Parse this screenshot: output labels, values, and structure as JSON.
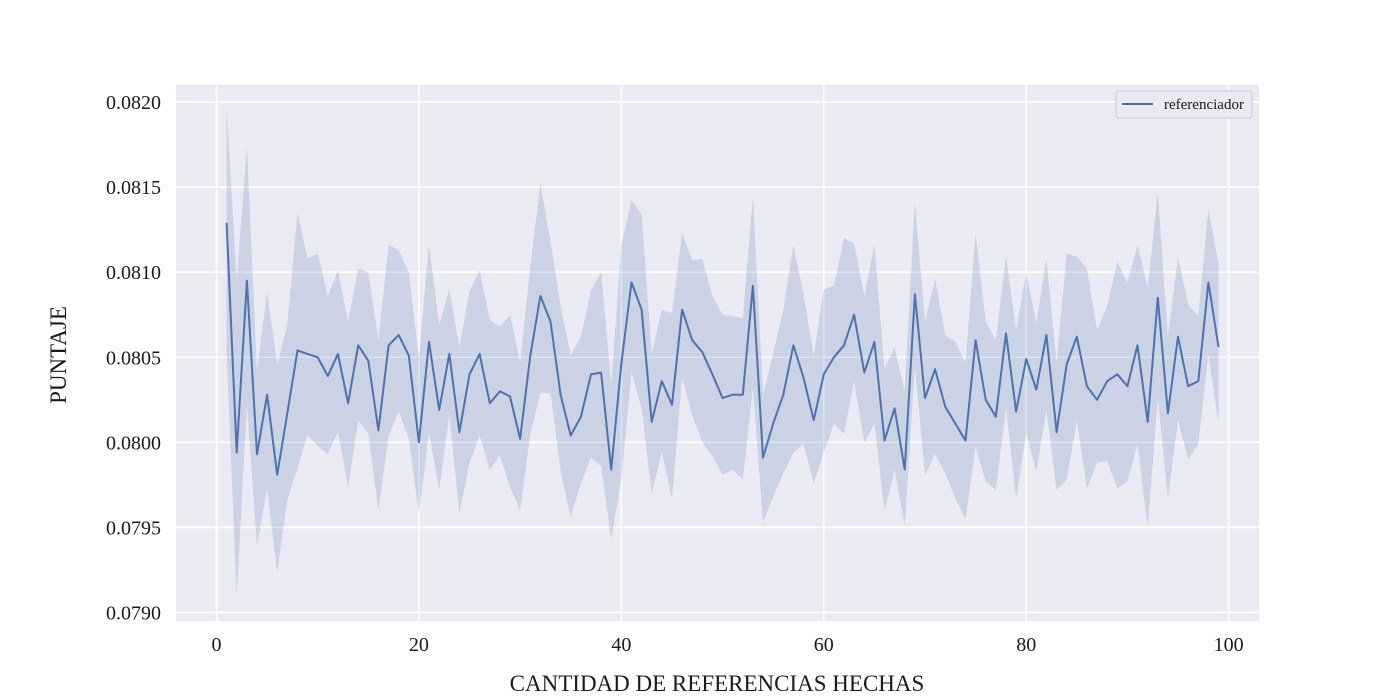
{
  "chart_data": {
    "type": "line",
    "title": "",
    "xlabel": "CANTIDAD DE REFERENCIAS HECHAS",
    "ylabel": "PUNTAJE",
    "xlim": [
      -4,
      103
    ],
    "ylim": [
      0.07895,
      0.0821
    ],
    "xticks": [
      0,
      20,
      40,
      60,
      80,
      100
    ],
    "xtick_labels": [
      "0",
      "20",
      "40",
      "60",
      "80",
      "100"
    ],
    "yticks": [
      0.079,
      0.0795,
      0.08,
      0.0805,
      0.081,
      0.0815,
      0.082
    ],
    "ytick_labels": [
      "0.0790",
      "0.0795",
      "0.0800",
      "0.0805",
      "0.0810",
      "0.0815",
      "0.0820"
    ],
    "grid": true,
    "legend_position": "top-right",
    "line_color": "#4c72b0",
    "band_color": "#4c72b0",
    "background_color": "#eaeaf2",
    "x": [
      1,
      2,
      3,
      4,
      5,
      6,
      7,
      8,
      9,
      10,
      11,
      12,
      13,
      14,
      15,
      16,
      17,
      18,
      19,
      20,
      21,
      22,
      23,
      24,
      25,
      26,
      27,
      28,
      29,
      30,
      31,
      32,
      33,
      34,
      35,
      36,
      37,
      38,
      39,
      40,
      41,
      42,
      43,
      44,
      45,
      46,
      47,
      48,
      49,
      50,
      51,
      52,
      53,
      54,
      55,
      56,
      57,
      58,
      59,
      60,
      61,
      62,
      63,
      64,
      65,
      66,
      67,
      68,
      69,
      70,
      71,
      72,
      73,
      74,
      75,
      76,
      77,
      78,
      79,
      80,
      81,
      82,
      83,
      84,
      85,
      86,
      87,
      88,
      89,
      90,
      91,
      92,
      93,
      94,
      95,
      96,
      97,
      98,
      99
    ],
    "series": [
      {
        "name": "referenciador",
        "values": [
          0.08129,
          0.07994,
          0.08095,
          0.07993,
          0.08028,
          0.07981,
          0.08017,
          0.08054,
          0.08052,
          0.0805,
          0.08039,
          0.08052,
          0.08023,
          0.08057,
          0.08048,
          0.08007,
          0.08057,
          0.08063,
          0.08051,
          0.08,
          0.08059,
          0.08019,
          0.08052,
          0.08006,
          0.0804,
          0.08052,
          0.08023,
          0.0803,
          0.08027,
          0.08002,
          0.08051,
          0.08086,
          0.08071,
          0.08028,
          0.08004,
          0.08015,
          0.0804,
          0.08041,
          0.07984,
          0.08046,
          0.08094,
          0.08078,
          0.08012,
          0.08036,
          0.08022,
          0.08078,
          0.0806,
          0.08053,
          0.0804,
          0.08026,
          0.08028,
          0.08028,
          0.08092,
          0.07991,
          0.08011,
          0.08028,
          0.08057,
          0.08038,
          0.08013,
          0.0804,
          0.0805,
          0.08057,
          0.08075,
          0.08041,
          0.08059,
          0.08001,
          0.0802,
          0.07984,
          0.08087,
          0.08026,
          0.08043,
          0.08021,
          0.08011,
          0.08001,
          0.0806,
          0.08025,
          0.08015,
          0.08064,
          0.08018,
          0.08049,
          0.08031,
          0.08063,
          0.08006,
          0.08046,
          0.08062,
          0.08033,
          0.08025,
          0.08036,
          0.0804,
          0.08033,
          0.08057,
          0.08012,
          0.08085,
          0.08017,
          0.08062,
          0.08033,
          0.08036,
          0.08094,
          0.08056
        ],
        "ci_upper": [
          0.08197,
          0.08095,
          0.08174,
          0.08042,
          0.08088,
          0.08046,
          0.08069,
          0.08135,
          0.08108,
          0.08111,
          0.08086,
          0.08101,
          0.08071,
          0.08102,
          0.081,
          0.0806,
          0.08116,
          0.08113,
          0.081,
          0.0805,
          0.08116,
          0.08069,
          0.0809,
          0.08056,
          0.08089,
          0.08101,
          0.08072,
          0.08068,
          0.08075,
          0.08047,
          0.08103,
          0.08152,
          0.08118,
          0.0808,
          0.08051,
          0.08062,
          0.08089,
          0.081,
          0.08034,
          0.08116,
          0.08142,
          0.08134,
          0.08052,
          0.08078,
          0.08076,
          0.08123,
          0.08107,
          0.08108,
          0.08086,
          0.08075,
          0.08074,
          0.08073,
          0.08144,
          0.08028,
          0.08052,
          0.08078,
          0.08116,
          0.08087,
          0.08051,
          0.0809,
          0.08092,
          0.0812,
          0.08117,
          0.08086,
          0.08116,
          0.08043,
          0.08056,
          0.0803,
          0.08141,
          0.08071,
          0.08096,
          0.08063,
          0.08059,
          0.08047,
          0.08123,
          0.08071,
          0.0806,
          0.08109,
          0.08066,
          0.081,
          0.0807,
          0.08108,
          0.08047,
          0.08111,
          0.08109,
          0.08102,
          0.08066,
          0.0808,
          0.08106,
          0.08094,
          0.08116,
          0.08091,
          0.08147,
          0.08062,
          0.08109,
          0.08081,
          0.08074,
          0.08137,
          0.08105
        ],
        "ci_lower": [
          0.08053,
          0.0791,
          0.08022,
          0.07939,
          0.07973,
          0.07924,
          0.07966,
          0.07985,
          0.08004,
          0.07998,
          0.07993,
          0.08006,
          0.07974,
          0.08013,
          0.08005,
          0.0796,
          0.08004,
          0.08018,
          0.08002,
          0.07958,
          0.08006,
          0.07972,
          0.08016,
          0.07958,
          0.07988,
          0.08004,
          0.07984,
          0.07992,
          0.07974,
          0.0796,
          0.08005,
          0.08029,
          0.08029,
          0.07983,
          0.07956,
          0.07976,
          0.07991,
          0.07986,
          0.07943,
          0.07978,
          0.08041,
          0.0802,
          0.0797,
          0.07994,
          0.07967,
          0.08038,
          0.08016,
          0.08,
          0.07992,
          0.07981,
          0.07984,
          0.07978,
          0.08032,
          0.07953,
          0.07968,
          0.07982,
          0.07994,
          0.07999,
          0.07976,
          0.07994,
          0.08011,
          0.08005,
          0.08036,
          0.08,
          0.08011,
          0.0796,
          0.07984,
          0.07951,
          0.08045,
          0.07981,
          0.07993,
          0.07982,
          0.07967,
          0.07955,
          0.07997,
          0.07977,
          0.07972,
          0.0802,
          0.07967,
          0.08005,
          0.07983,
          0.08019,
          0.07972,
          0.07978,
          0.08013,
          0.07973,
          0.07988,
          0.07989,
          0.07973,
          0.07977,
          0.07999,
          0.0795,
          0.08026,
          0.07967,
          0.08013,
          0.0799,
          0.07999,
          0.08052,
          0.08011
        ]
      }
    ]
  }
}
